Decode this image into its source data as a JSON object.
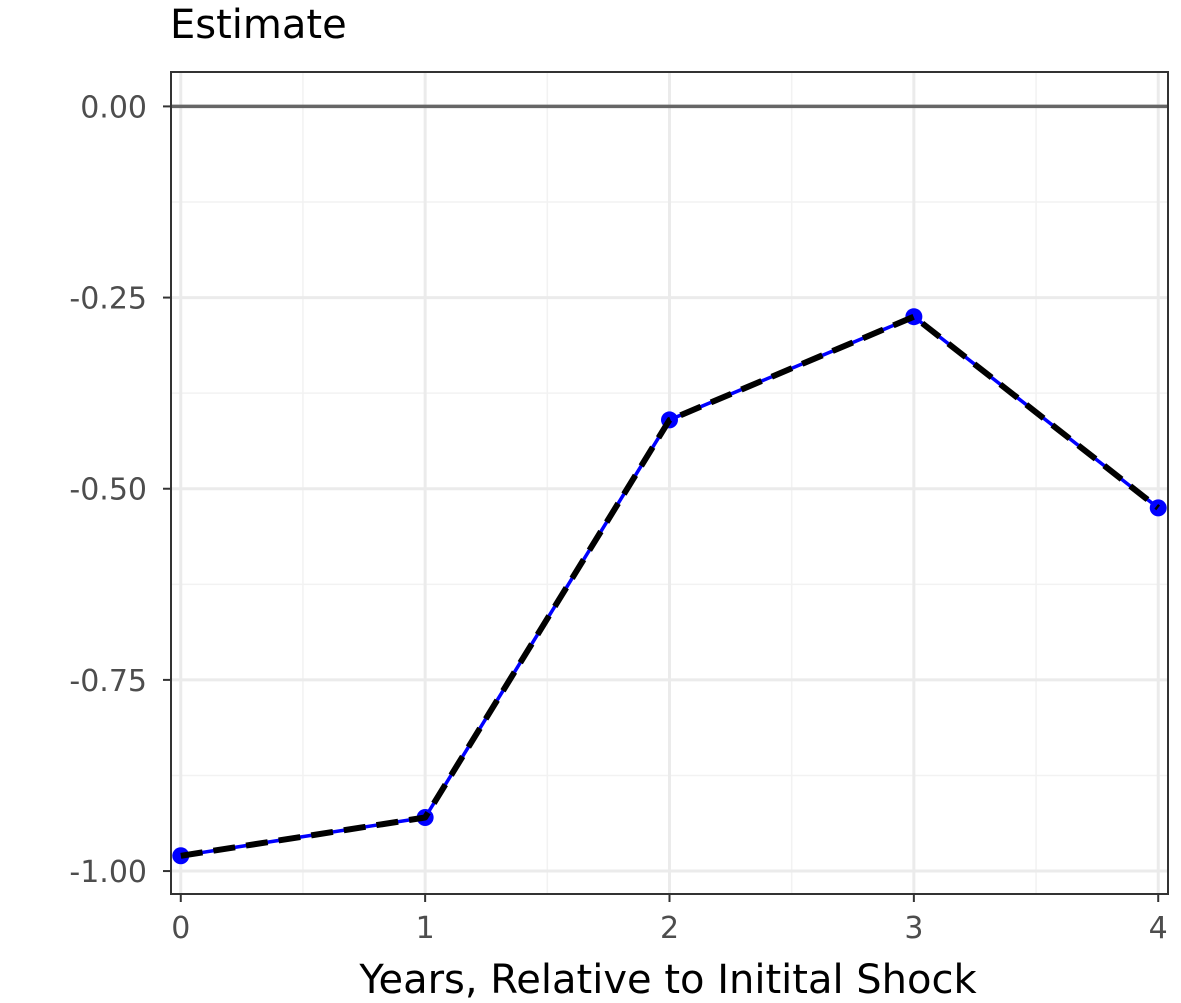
{
  "chart_data": {
    "type": "line",
    "title": "",
    "ylabel": "Estimate",
    "xlabel": "Years, Relative to Initital Shock",
    "x": [
      0,
      1,
      2,
      3,
      4
    ],
    "x_ticks": [
      "0",
      "1",
      "2",
      "3",
      "4"
    ],
    "y_ticks": [
      "0.00",
      "-0.25",
      "-0.50",
      "-0.75",
      "-1.00"
    ],
    "y_tick_values": [
      0,
      -0.25,
      -0.5,
      -0.75,
      -1.0
    ],
    "xlim": [
      -0.04,
      4.04
    ],
    "ylim": [
      -1.03,
      0.045
    ],
    "reference_line": 0,
    "grid": true,
    "series": [
      {
        "style": "solid",
        "markers": true,
        "color": "#0000ff",
        "values": [
          -0.98,
          -0.93,
          -0.41,
          -0.275,
          -0.525
        ]
      },
      {
        "style": "dashed",
        "markers": false,
        "color": "#000000",
        "values": [
          -0.98,
          -0.93,
          -0.41,
          -0.275,
          -0.525
        ]
      }
    ],
    "colors": {
      "panel_border": "#333333",
      "grid_major": "#ebebeb",
      "grid_minor": "#f2f2f2",
      "zero_line": "#666666",
      "tick_text": "#4d4d4d"
    }
  }
}
